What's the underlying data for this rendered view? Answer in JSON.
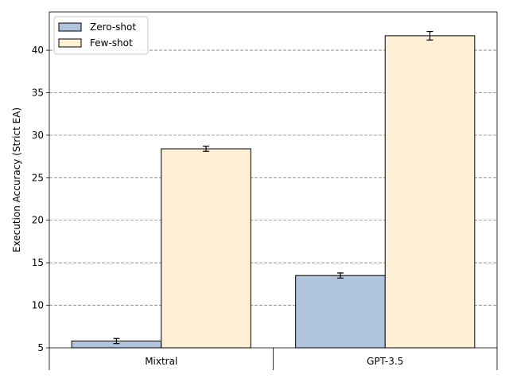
{
  "chart_data": {
    "type": "bar",
    "title": "",
    "xlabel": "",
    "ylabel": "Execution Accuracy (Strict EA)",
    "categories": [
      "Mixtral",
      "GPT-3.5"
    ],
    "ylim": [
      5,
      44.5
    ],
    "yticks": [
      5,
      10,
      15,
      20,
      25,
      30,
      35,
      40
    ],
    "grid": "horizontal-dashed",
    "legend_position": "top-left",
    "series": [
      {
        "name": "Zero-shot",
        "color": "#b0c4de",
        "values": [
          5.8,
          13.5
        ],
        "errors": [
          0.3,
          0.3
        ]
      },
      {
        "name": "Few-shot",
        "color": "#ffefd5",
        "values": [
          28.4,
          41.7
        ],
        "errors": [
          0.3,
          0.5
        ]
      }
    ]
  }
}
